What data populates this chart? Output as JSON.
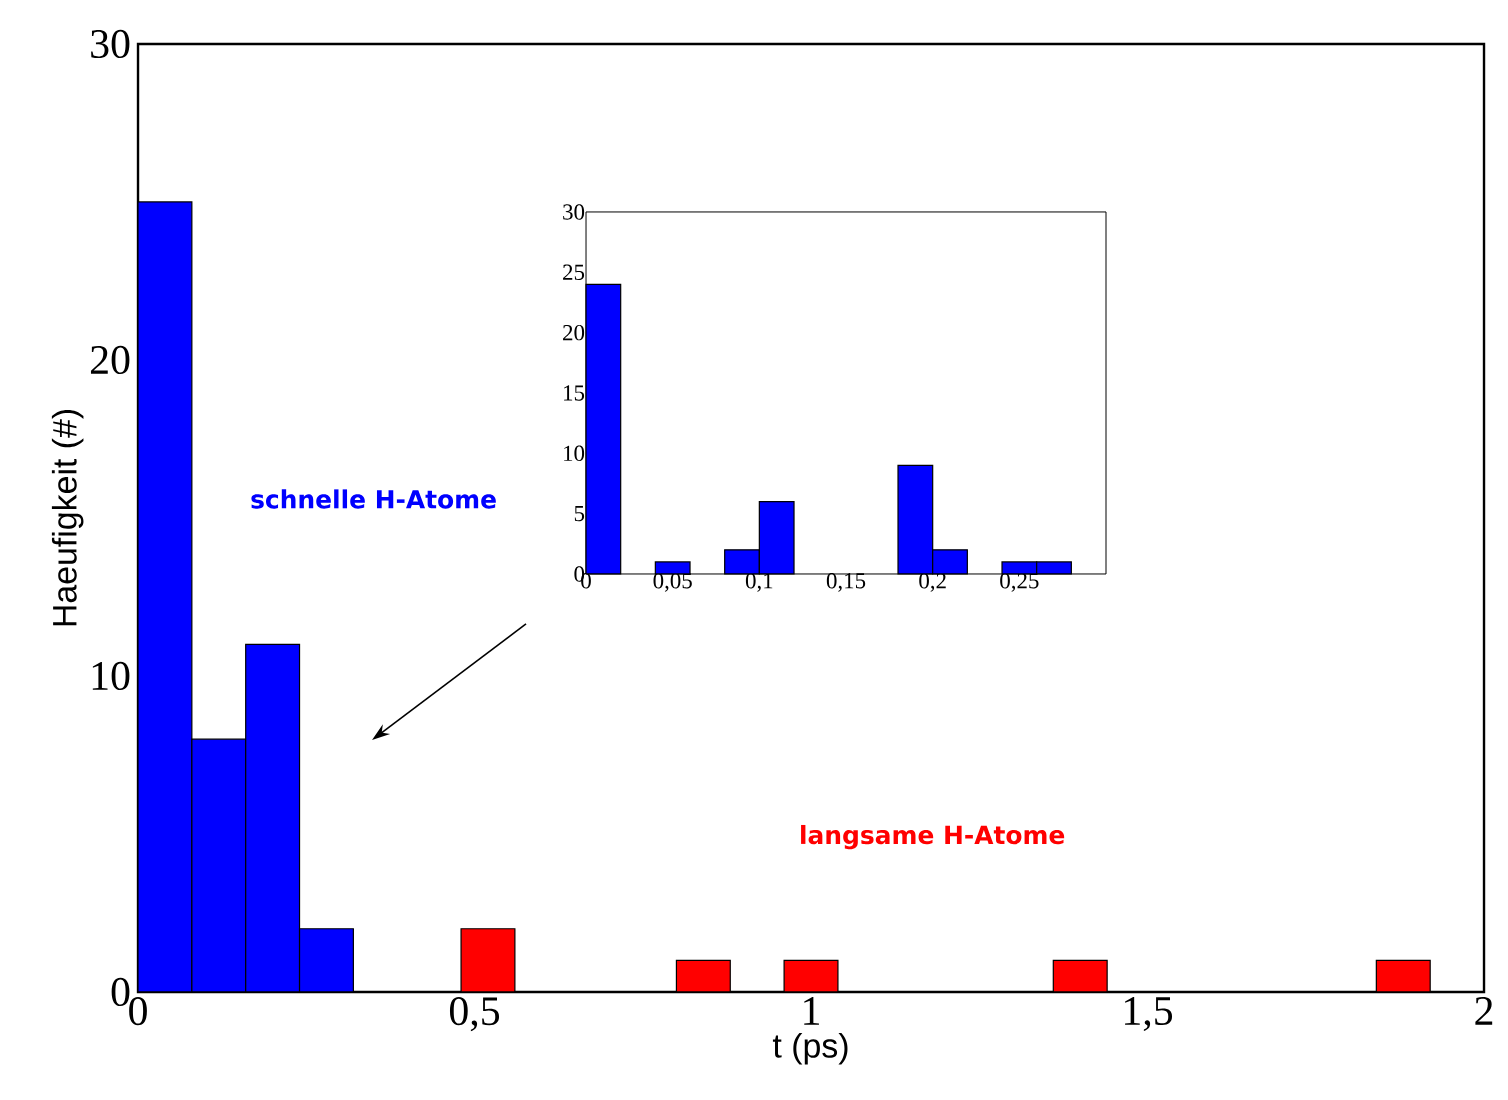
{
  "chart_data": [
    {
      "type": "histogram",
      "xlabel": "t (ps)",
      "ylabel": "Haeufigkeit (#)",
      "bins": [
        0,
        0.08,
        0.16,
        0.24,
        0.32,
        0.4,
        0.48,
        0.56,
        0.64,
        0.72,
        0.8,
        0.88,
        0.96,
        1.04,
        1.12,
        1.2,
        1.28,
        1.36,
        1.44,
        1.52,
        1.6,
        1.68,
        1.76,
        1.84,
        1.92
      ],
      "values": [
        25,
        8,
        11,
        2,
        0,
        0,
        2,
        0,
        0,
        0,
        1,
        0,
        1,
        0,
        0,
        0,
        0,
        1,
        0,
        0,
        0,
        0,
        0,
        1
      ],
      "colors": [
        "#0000ff",
        "#0000ff",
        "#0000ff",
        "#0000ff",
        "#ff0000",
        "#ff0000",
        "#ff0000",
        "#ff0000",
        "#ff0000",
        "#ff0000",
        "#ff0000",
        "#ff0000",
        "#ff0000",
        "#ff0000",
        "#ff0000",
        "#ff0000",
        "#ff0000",
        "#ff0000",
        "#ff0000",
        "#ff0000",
        "#ff0000",
        "#ff0000",
        "#ff0000",
        "#ff0000"
      ],
      "xlim": [
        0,
        2
      ],
      "ylim": [
        0,
        30
      ],
      "xticks": [
        0,
        {
          "value": 0.5,
          "label": "0,5"
        },
        1,
        {
          "value": 1.5,
          "label": "1,5"
        },
        2
      ],
      "yticks": [
        0,
        10,
        20,
        30
      ],
      "annotations": [
        "schnelle H-Atome",
        "langsame H-Atome"
      ]
    },
    {
      "type": "histogram",
      "bins": [
        0,
        0.02,
        0.04,
        0.06,
        0.08,
        0.1,
        0.12,
        0.14,
        0.16,
        0.18,
        0.2,
        0.22,
        0.24,
        0.26,
        0.28
      ],
      "values": [
        24,
        0,
        1,
        0,
        2,
        6,
        0,
        0,
        0,
        9,
        2,
        0,
        1,
        1
      ],
      "color": "#0000ff",
      "xlim": [
        0,
        0.3
      ],
      "ylim": [
        0,
        30
      ],
      "xticks": [
        0,
        {
          "value": 0.05,
          "label": "0,05"
        },
        {
          "value": 0.1,
          "label": "0,1"
        },
        {
          "value": 0.15,
          "label": "0,15"
        },
        {
          "value": 0.2,
          "label": "0,2"
        },
        {
          "value": 0.25,
          "label": "0,25"
        }
      ],
      "yticks": [
        0,
        5,
        10,
        15,
        20,
        25,
        30
      ]
    }
  ]
}
